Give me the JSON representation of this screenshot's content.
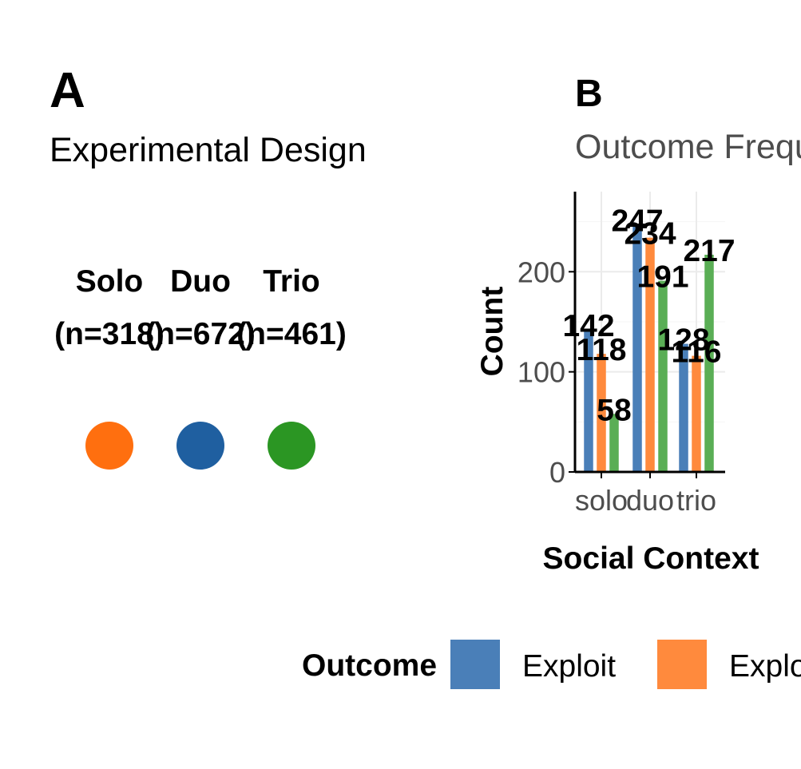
{
  "panel_a": {
    "letter": "A",
    "subtitle": "Experimental Design",
    "groups": [
      {
        "name": "Solo",
        "n": "(n=318)",
        "color": "#FF6F0F"
      },
      {
        "name": "Duo",
        "n": "(n=672)",
        "color": "#1F5FA0"
      },
      {
        "name": "Trio",
        "n": "(n=461)",
        "color": "#2B9623"
      }
    ]
  },
  "panel_b": {
    "letter": "B",
    "subtitle": "Outcome Frequencies"
  },
  "chart_data": {
    "type": "bar",
    "title": "Outcome Frequencies",
    "xlabel": "Social Context",
    "ylabel": "Count",
    "categories": [
      "solo",
      "duo",
      "trio"
    ],
    "series": [
      {
        "name": "Exploit",
        "color": "#4A7FB8",
        "values": [
          142,
          247,
          128
        ]
      },
      {
        "name": "Explore",
        "color": "#FF8A3D",
        "values": [
          118,
          234,
          116
        ]
      },
      {
        "name": "",
        "color": "#5AAE55",
        "values": [
          58,
          191,
          217
        ]
      }
    ],
    "ylim": [
      0,
      280
    ],
    "yticks": [
      0,
      100,
      200
    ],
    "grid": true,
    "legend_position": "bottom",
    "legend_title": "Outcome"
  }
}
